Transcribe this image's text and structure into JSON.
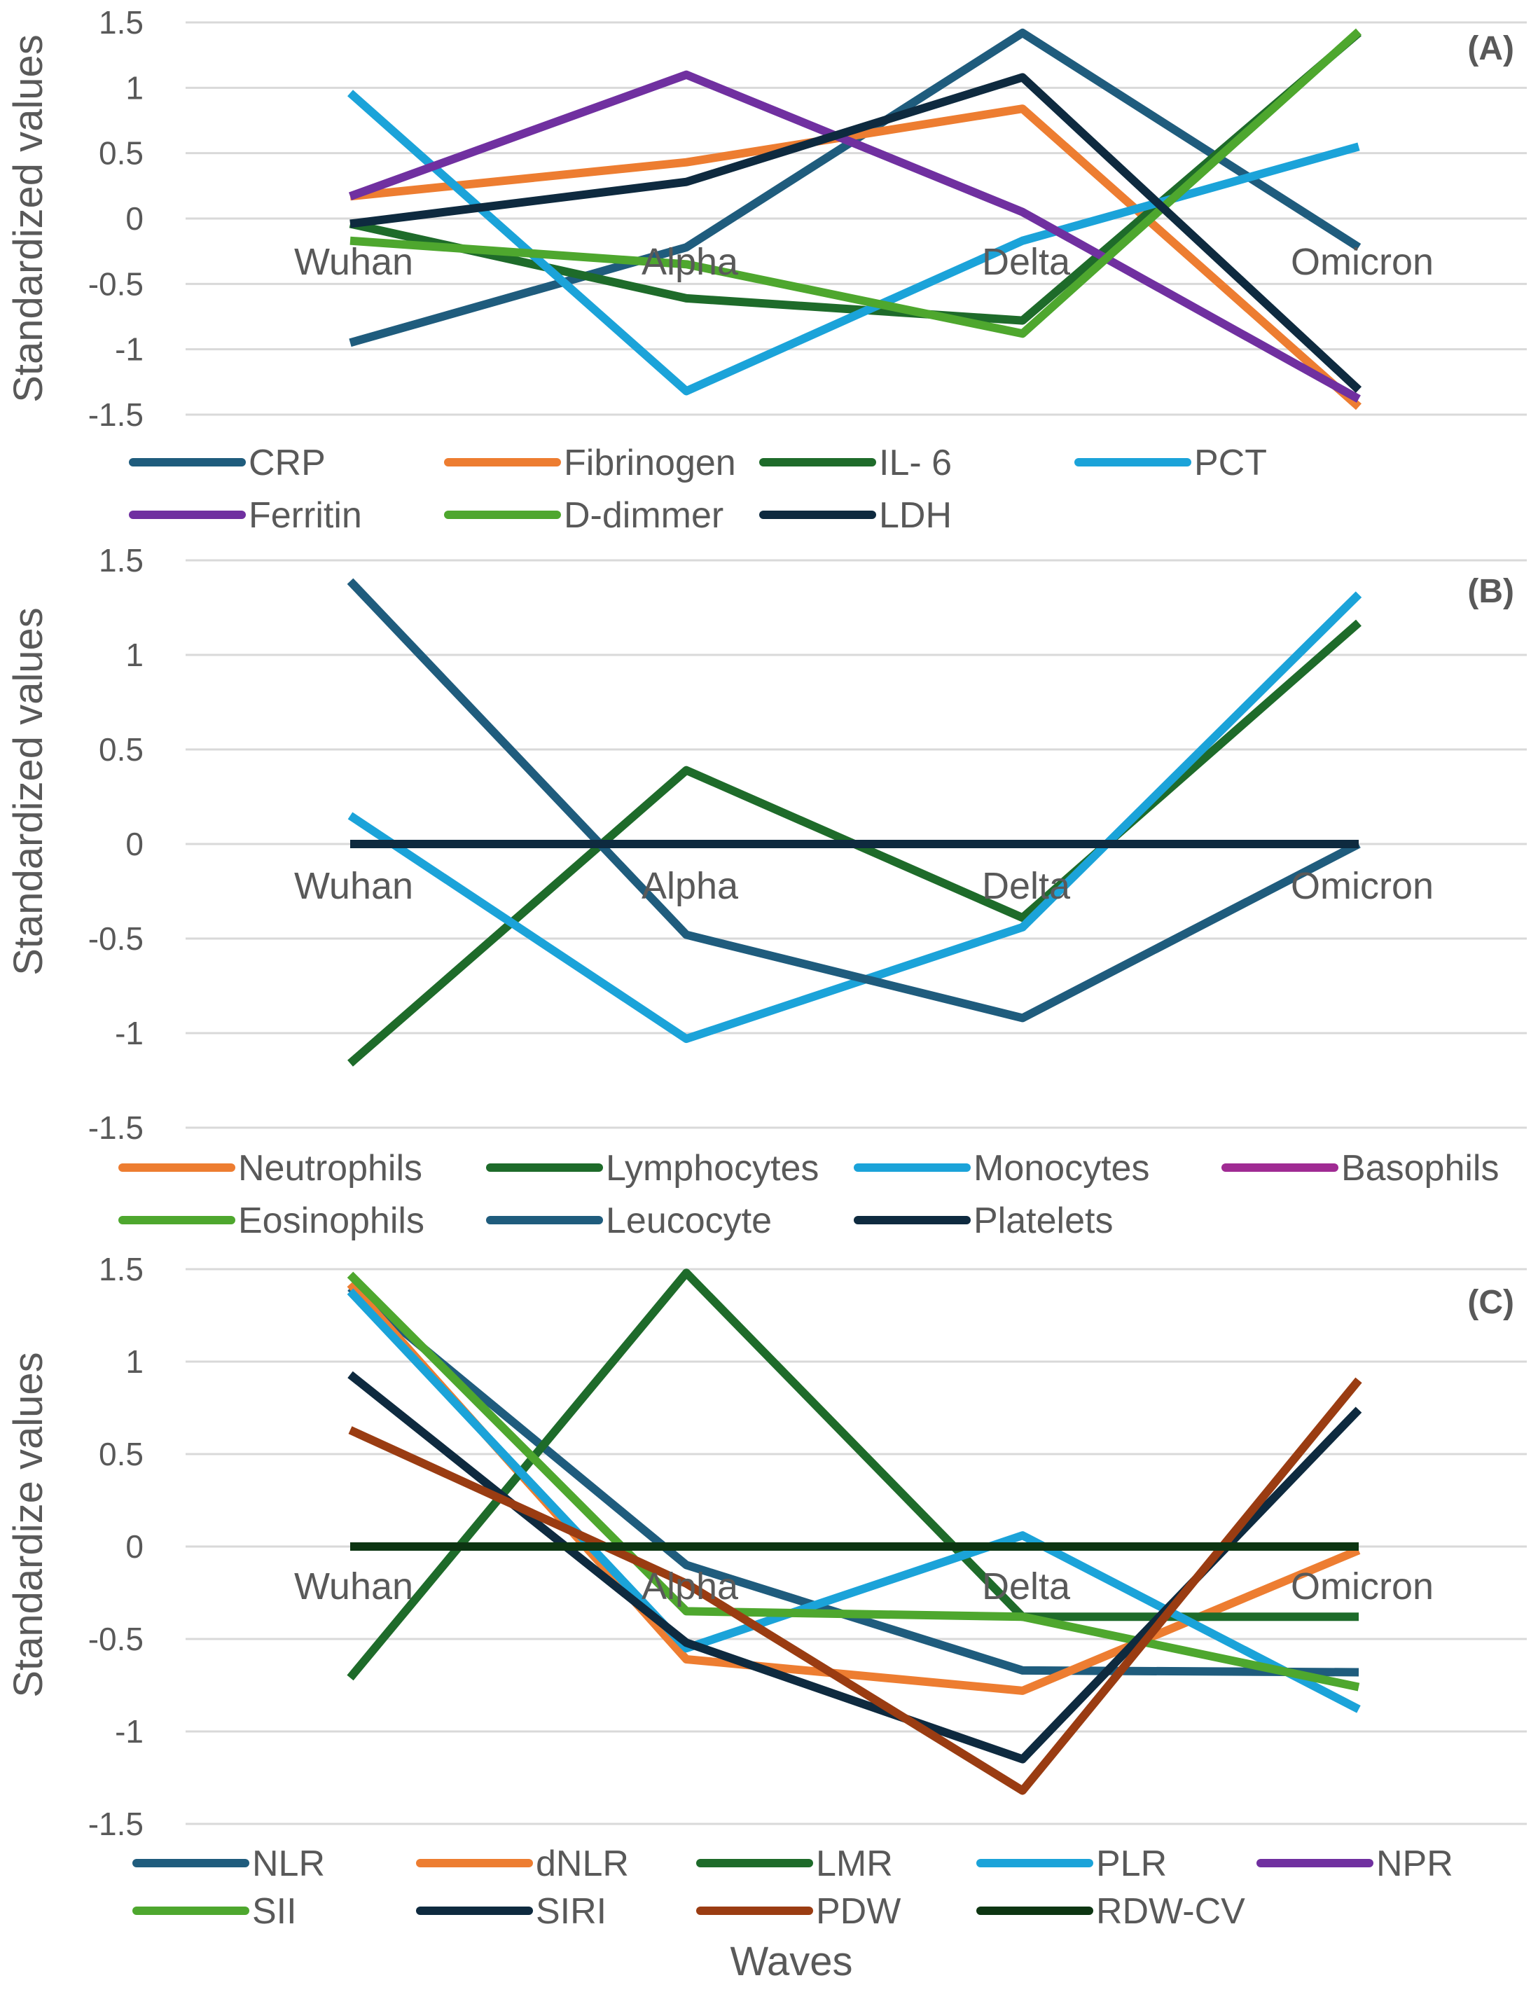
{
  "chart_data": [
    {
      "type": "line",
      "panel_label": "(A)",
      "ylabel": "Standardized values",
      "xlabel": "",
      "categories": [
        "Wuhan",
        "Alpha",
        "Delta",
        "Omicron"
      ],
      "ylim": [
        -1.5,
        1.5
      ],
      "yticks": [
        "-1.5",
        "-1",
        "-0.5",
        "0",
        "0.5",
        "1",
        "1.5"
      ],
      "grid": true,
      "legend_position": "bottom",
      "series": [
        {
          "name": "CRP",
          "color": "#1f5c7d",
          "values": [
            -0.95,
            -0.22,
            1.42,
            -0.22
          ]
        },
        {
          "name": "Fibrinogen",
          "color": "#ed7d31",
          "values": [
            0.17,
            0.43,
            0.84,
            -1.44
          ]
        },
        {
          "name": "IL- 6",
          "color": "#1e6b2a",
          "values": [
            -0.04,
            -0.61,
            -0.78,
            1.42
          ]
        },
        {
          "name": "PCT",
          "color": "#1ba3d9",
          "values": [
            0.96,
            -1.32,
            -0.17,
            0.55
          ]
        },
        {
          "name": "Ferritin",
          "color": "#7030a0",
          "values": [
            0.17,
            1.1,
            0.05,
            -1.38
          ]
        },
        {
          "name": "D-dimmer",
          "color": "#4ea72e",
          "values": [
            -0.17,
            -0.35,
            -0.88,
            1.43
          ]
        },
        {
          "name": "LDH",
          "color": "#0e2a3f",
          "values": [
            -0.04,
            0.28,
            1.08,
            -1.31
          ]
        }
      ]
    },
    {
      "type": "line",
      "panel_label": "(B)",
      "ylabel": "Standardized values",
      "xlabel": "",
      "categories": [
        "Wuhan",
        "Alpha",
        "Delta",
        "Omicron"
      ],
      "ylim": [
        -1.5,
        1.5
      ],
      "yticks": [
        "-1.5",
        "-1",
        "-0.5",
        "0",
        "0.5",
        "1",
        "1.5"
      ],
      "grid": true,
      "legend_position": "bottom",
      "series": [
        {
          "name": "Neutrophils",
          "color": "#ed7d31",
          "values": [
            0,
            0,
            0,
            0
          ]
        },
        {
          "name": "Lymphocytes",
          "color": "#1e6b2a",
          "values": [
            -1.16,
            0.39,
            -0.39,
            1.17
          ]
        },
        {
          "name": "Monocytes",
          "color": "#1ba3d9",
          "values": [
            0.15,
            -1.03,
            -0.44,
            1.32
          ]
        },
        {
          "name": "Basophils",
          "color": "#a02b93",
          "values": [
            0,
            0,
            0,
            0
          ]
        },
        {
          "name": "Eosinophils",
          "color": "#4ea72e",
          "values": [
            0,
            0,
            0,
            0
          ]
        },
        {
          "name": "Leucocyte",
          "color": "#1f5c7d",
          "values": [
            1.39,
            -0.48,
            -0.92,
            0
          ]
        },
        {
          "name": "Platelets",
          "color": "#0e2a3f",
          "values": [
            0,
            0,
            0,
            0
          ]
        }
      ]
    },
    {
      "type": "line",
      "panel_label": "(C)",
      "ylabel": "Standardize values",
      "xlabel": "Waves",
      "categories": [
        "Wuhan",
        "Alpha",
        "Delta",
        "Omicron"
      ],
      "ylim": [
        -1.5,
        1.5
      ],
      "yticks": [
        "-1.5",
        "-1",
        "-0.5",
        "0",
        "0.5",
        "1",
        "1.5"
      ],
      "grid": true,
      "legend_position": "bottom",
      "series": [
        {
          "name": "NLR",
          "color": "#1f5c7d",
          "values": [
            1.4,
            -0.1,
            -0.67,
            -0.68
          ]
        },
        {
          "name": "dNLR",
          "color": "#ed7d31",
          "values": [
            1.42,
            -0.61,
            -0.78,
            -0.02
          ]
        },
        {
          "name": "LMR",
          "color": "#1e6b2a",
          "values": [
            -0.71,
            1.48,
            -0.38,
            -0.38
          ]
        },
        {
          "name": "PLR",
          "color": "#1ba3d9",
          "values": [
            1.38,
            -0.55,
            0.06,
            -0.88
          ]
        },
        {
          "name": "NPR",
          "color": "#7030a0",
          "values": [
            0,
            0,
            0,
            0
          ]
        },
        {
          "name": "SII",
          "color": "#4ea72e",
          "values": [
            1.47,
            -0.35,
            -0.38,
            -0.76
          ]
        },
        {
          "name": "SIRI",
          "color": "#0e2a3f",
          "values": [
            0.93,
            -0.52,
            -1.15,
            0.74
          ]
        },
        {
          "name": "PDW",
          "color": "#9a3c12",
          "values": [
            0.63,
            -0.2,
            -1.32,
            0.9
          ]
        },
        {
          "name": "RDW-CV",
          "color": "#0d3512",
          "values": [
            0,
            0,
            0,
            0
          ]
        }
      ]
    }
  ]
}
